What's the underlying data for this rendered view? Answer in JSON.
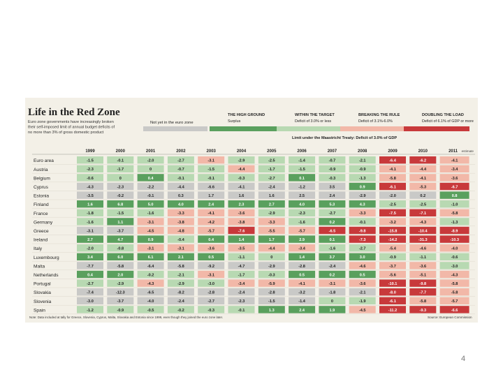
{
  "slide": {
    "page_number": "4"
  },
  "chart_data": {
    "type": "table",
    "title": "Life in the Red Zone",
    "subtitle_lines": [
      "Euro zone governments have increasingly broken",
      "their self-imposed limit of annual budget deficits of",
      "no more than 3% of gross domestic product"
    ],
    "legend": {
      "not_in_zone_label": "Not yet in the euro zone",
      "entries": [
        {
          "title": "THE HIGH GROUND",
          "desc": "Surplus",
          "color": "#5aa05e"
        },
        {
          "title": "WITHIN THE TARGET",
          "desc": "Deficit of 3.0% or less",
          "color": "#b8d9b2"
        },
        {
          "title": "BREAKING THE RULE",
          "desc": "Deficit of 3.1%-6.0%",
          "color": "#f2b8a8"
        },
        {
          "title": "DOUBLING THE LOAD",
          "desc": "Deficit of 6.1% of GDP or more",
          "color": "#c8393b"
        }
      ],
      "limit_label": "Limit under the Maastricht Treaty: Deficit of 3.0% of GDP"
    },
    "columns": [
      "1999",
      "2000",
      "2001",
      "2002",
      "2003",
      "2004",
      "2005",
      "2006",
      "2007",
      "2008",
      "2009",
      "2010",
      "2011"
    ],
    "last_column_note": "estimate",
    "rows": [
      {
        "name": "Euro area",
        "values": [
          -1.5,
          -0.1,
          -2.0,
          -2.7,
          -3.1,
          -2.9,
          -2.5,
          -1.4,
          -0.7,
          -2.1,
          -6.4,
          -6.2,
          -4.1
        ],
        "not_in_zone": []
      },
      {
        "name": "Austria",
        "values": [
          -2.3,
          -1.7,
          0,
          -0.7,
          -1.5,
          -4.4,
          -1.7,
          -1.5,
          -0.9,
          -0.9,
          -4.1,
          -4.4,
          -3.4
        ],
        "not_in_zone": []
      },
      {
        "name": "Belgium",
        "values": [
          -0.6,
          0,
          0.4,
          -0.1,
          -0.1,
          -0.3,
          -2.7,
          0.1,
          -0.3,
          -1.3,
          -5.8,
          -4.1,
          -3.6
        ],
        "not_in_zone": []
      },
      {
        "name": "Cyprus",
        "values": [
          -4.3,
          -2.3,
          -2.2,
          -4.4,
          -6.6,
          -4.1,
          -2.4,
          -1.2,
          3.5,
          0.9,
          -6.1,
          -5.3,
          -6.7
        ],
        "not_in_zone": [
          0,
          1,
          2,
          3,
          4,
          5,
          6,
          7,
          8
        ]
      },
      {
        "name": "Estonia",
        "values": [
          -3.5,
          -0.2,
          -0.1,
          0.3,
          1.7,
          1.6,
          1.6,
          2.5,
          2.4,
          -2.9,
          -2.0,
          0.2,
          0.8
        ],
        "not_in_zone": [
          0,
          1,
          2,
          3,
          4,
          5,
          6,
          7,
          8,
          9,
          10,
          11
        ]
      },
      {
        "name": "Finland",
        "values": [
          1.6,
          6.8,
          5.0,
          4.0,
          2.4,
          2.3,
          2.7,
          4.0,
          5.3,
          4.3,
          -2.5,
          -2.5,
          -1.0
        ],
        "not_in_zone": []
      },
      {
        "name": "France",
        "values": [
          -1.8,
          -1.5,
          -1.6,
          -3.3,
          -4.1,
          -3.6,
          -2.9,
          -2.3,
          -2.7,
          -3.3,
          -7.5,
          -7.1,
          -5.8
        ],
        "not_in_zone": []
      },
      {
        "name": "Germany",
        "values": [
          -1.6,
          1.1,
          -3.1,
          -3.8,
          -4.2,
          -3.8,
          -3.3,
          -1.6,
          0.2,
          -0.1,
          -3.2,
          -4.3,
          -1.3
        ],
        "not_in_zone": []
      },
      {
        "name": "Greece",
        "values": [
          -3.1,
          -3.7,
          -4.5,
          -4.8,
          -5.7,
          -7.6,
          -5.5,
          -5.7,
          -6.5,
          -9.8,
          -15.8,
          -10.4,
          -8.9
        ],
        "not_in_zone": [
          0,
          1
        ]
      },
      {
        "name": "Ireland",
        "values": [
          2.7,
          4.7,
          0.9,
          -0.4,
          0.4,
          1.4,
          1.7,
          2.9,
          0.1,
          -7.3,
          -14.2,
          -31.3,
          -10.3
        ],
        "not_in_zone": []
      },
      {
        "name": "Italy",
        "values": [
          -2.0,
          -0.8,
          -3.1,
          -3.1,
          -3.6,
          -3.5,
          -4.4,
          -3.4,
          -1.6,
          -2.7,
          -5.4,
          -4.6,
          -4.0
        ],
        "not_in_zone": []
      },
      {
        "name": "Luxembourg",
        "values": [
          3.4,
          6.0,
          6.1,
          2.1,
          0.5,
          -1.1,
          0,
          1.4,
          3.7,
          3.0,
          -0.9,
          -1.1,
          -0.6
        ],
        "not_in_zone": []
      },
      {
        "name": "Malta",
        "values": [
          -7.7,
          -5.8,
          -6.4,
          -5.8,
          -9.2,
          -4.7,
          -2.9,
          -2.8,
          -2.4,
          -4.6,
          -3.7,
          -3.6,
          -3.0
        ],
        "not_in_zone": [
          0,
          1,
          2,
          3,
          4,
          5,
          6,
          7,
          8
        ]
      },
      {
        "name": "Netherlands",
        "values": [
          0.4,
          2.0,
          -0.2,
          -2.1,
          -3.1,
          -1.7,
          -0.3,
          0.5,
          0.2,
          0.5,
          -5.6,
          -5.1,
          -4.3
        ],
        "not_in_zone": []
      },
      {
        "name": "Portugal",
        "values": [
          -2.7,
          -2.9,
          -4.3,
          -2.9,
          -3.0,
          -3.4,
          -5.9,
          -4.1,
          -3.1,
          -3.6,
          -10.1,
          -9.8,
          -5.8
        ],
        "not_in_zone": []
      },
      {
        "name": "Slovakia",
        "values": [
          -7.4,
          -12.3,
          -6.5,
          -8.2,
          -2.8,
          -2.4,
          -2.8,
          -3.2,
          -1.8,
          -2.1,
          -8.0,
          -7.7,
          -5.8
        ],
        "not_in_zone": [
          0,
          1,
          2,
          3,
          4,
          5,
          6,
          7,
          8,
          9
        ]
      },
      {
        "name": "Slovenia",
        "values": [
          -3.0,
          -3.7,
          -4.0,
          -2.4,
          -2.7,
          -2.3,
          -1.5,
          -1.4,
          0,
          -1.9,
          -6.1,
          -5.8,
          -5.7
        ],
        "not_in_zone": [
          0,
          1,
          2,
          3,
          4,
          5,
          6,
          7
        ]
      },
      {
        "name": "Spain",
        "values": [
          -1.2,
          -0.9,
          -0.5,
          -0.2,
          -0.3,
          -0.1,
          1.3,
          2.4,
          1.9,
          -4.5,
          -11.2,
          -9.3,
          -6.6
        ],
        "not_in_zone": []
      }
    ],
    "footnote": "Note: Data included at tally for Greece, Slovenia, Cyprus, Malta, Slovakia and Estonia since 1999, even though they joined the euro zone later.",
    "source": "Source: European Commission",
    "colors": {
      "background": "#f3f0e7",
      "not_in_zone": "#c9c9c7",
      "surplus": "#5aa05e",
      "within": "#b8d9b2",
      "breaking": "#f2b8a8",
      "doubling": "#c8393b",
      "text": "#222222"
    }
  }
}
